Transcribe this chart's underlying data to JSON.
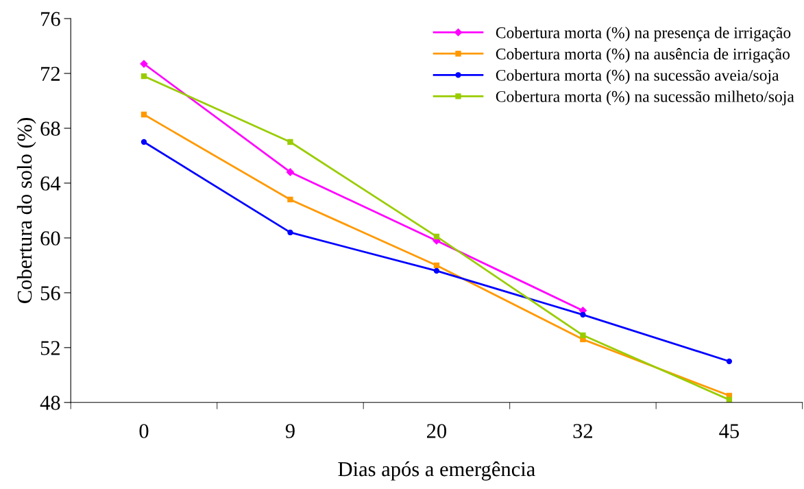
{
  "chart_data": {
    "type": "line",
    "xlabel": "Dias após a emergência",
    "ylabel": "Cobertura do solo (%)",
    "categories": [
      "0",
      "9",
      "20",
      "32",
      "45"
    ],
    "series": [
      {
        "name": "Cobertura morta (%) na presença de irrigação",
        "color": "#ff00ff",
        "marker": "diamond",
        "values": [
          72.7,
          64.8,
          59.8,
          54.7,
          null
        ]
      },
      {
        "name": "Cobertura morta (%) na ausência de irrigação",
        "color": "#ff9900",
        "marker": "square",
        "values": [
          69.0,
          62.8,
          58.0,
          52.6,
          48.5
        ]
      },
      {
        "name": "Cobertura morta (%) na sucessão aveia/soja",
        "color": "#0000ff",
        "marker": "circle",
        "values": [
          67.0,
          60.4,
          57.6,
          54.4,
          51.0
        ]
      },
      {
        "name": "Cobertura morta (%) na sucessão milheto/soja",
        "color": "#99cc00",
        "marker": "square",
        "values": [
          71.8,
          67.0,
          60.1,
          52.9,
          48.2
        ]
      }
    ],
    "ylim": [
      48,
      76
    ],
    "yticks": [
      48,
      52,
      56,
      60,
      64,
      68,
      72,
      76
    ],
    "grid": false,
    "legend": "top right",
    "line_style": "solid"
  }
}
